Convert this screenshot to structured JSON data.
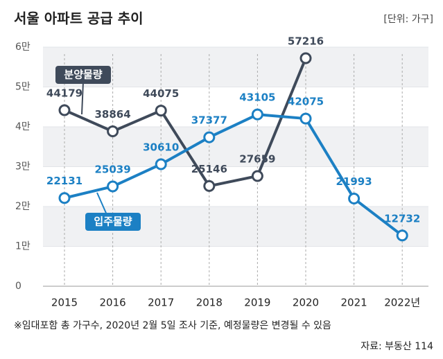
{
  "chart_data": {
    "type": "line",
    "title": "서울 아파트 공급 추이",
    "unit": "[단위: 가구]",
    "categories": [
      "2015",
      "2016",
      "2017",
      "2018",
      "2019",
      "2020",
      "2021",
      "2022년"
    ],
    "series": [
      {
        "name": "분양물량",
        "color": "#3f4a5a",
        "values": [
          44179,
          38864,
          44075,
          25146,
          27659,
          57216,
          null,
          null
        ]
      },
      {
        "name": "입주물량",
        "color": "#1c80c4",
        "values": [
          22131,
          25039,
          30610,
          37377,
          43105,
          42075,
          21993,
          12732
        ]
      }
    ],
    "ylim": [
      0,
      60000
    ],
    "yticks": [
      0,
      {
        "value": 10000,
        "label": "1만"
      },
      {
        "value": 20000,
        "label": "2만"
      },
      {
        "value": 30000,
        "label": "3만"
      },
      {
        "value": 40000,
        "label": "4만"
      },
      {
        "value": 50000,
        "label": "5만"
      },
      {
        "value": 60000,
        "label": "6만"
      }
    ],
    "grid": true,
    "footnote": "※임대포함 총 가구수, 2020년 2월 5일 조사 기준, 예정물량은 변경될 수 있음",
    "source": "자료: 부동산 114"
  }
}
